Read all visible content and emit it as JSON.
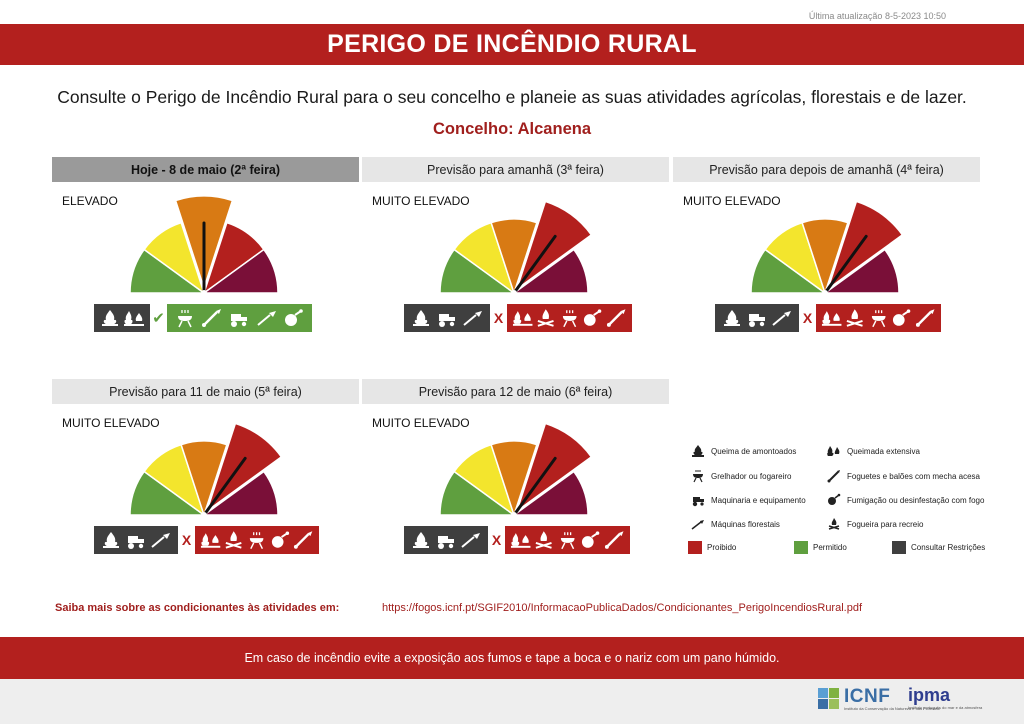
{
  "header": {
    "updated": "Última atualização 8-5-2023 10:50",
    "title": "PERIGO DE INCÊNDIO RURAL",
    "subtitle": "Consulte o Perigo de Incêndio Rural para o seu concelho e planeie as suas atividades agrícolas, florestais e de lazer.",
    "concelho": "Concelho: Alcanena"
  },
  "colors": {
    "brand_red": "#b3201e",
    "permitted_green": "#5f9f3f",
    "restricted_grey": "#3f3f3f",
    "gauge": [
      "#5f9f3f",
      "#f3e52d",
      "#d87a14",
      "#b3201e",
      "#7a0f38"
    ]
  },
  "panels": [
    {
      "heading": "Hoje - 8 de maio (2ª feira)",
      "level": "ELEVADO",
      "level_index": 3,
      "consult_icons": [
        "queima-amontoados-icon",
        "queimada-extensiva-icon"
      ],
      "status": "permitido",
      "status_icons": [
        "grelhador-icon",
        "foguetes-icon",
        "maquinaria-icon",
        "maquinas-florestais-icon",
        "fumigacao-icon"
      ]
    },
    {
      "heading": "Previsão para amanhã (3ª feira)",
      "level": "MUITO ELEVADO",
      "level_index": 4,
      "consult_icons": [
        "queima-amontoados-icon",
        "maquinaria-icon",
        "maquinas-florestais-icon"
      ],
      "status": "proibido",
      "status_icons": [
        "queimada-extensiva-icon",
        "fogueira-recreio-icon",
        "grelhador-icon",
        "fumigacao-icon",
        "foguetes-icon"
      ]
    },
    {
      "heading": "Previsão para depois de amanhã (4ª feira)",
      "level": "MUITO ELEVADO",
      "level_index": 4,
      "consult_icons": [
        "queima-amontoados-icon",
        "maquinaria-icon",
        "maquinas-florestais-icon"
      ],
      "status": "proibido",
      "status_icons": [
        "queimada-extensiva-icon",
        "fogueira-recreio-icon",
        "grelhador-icon",
        "fumigacao-icon",
        "foguetes-icon"
      ]
    },
    {
      "heading": "Previsão para 11 de maio (5ª feira)",
      "level": "MUITO ELEVADO",
      "level_index": 4,
      "consult_icons": [
        "queima-amontoados-icon",
        "maquinaria-icon",
        "maquinas-florestais-icon"
      ],
      "status": "proibido",
      "status_icons": [
        "queimada-extensiva-icon",
        "fogueira-recreio-icon",
        "grelhador-icon",
        "fumigacao-icon",
        "foguetes-icon"
      ]
    },
    {
      "heading": "Previsão para 12 de maio (6ª feira)",
      "level": "MUITO ELEVADO",
      "level_index": 4,
      "consult_icons": [
        "queima-amontoados-icon",
        "maquinaria-icon",
        "maquinas-florestais-icon"
      ],
      "status": "proibido",
      "status_icons": [
        "queimada-extensiva-icon",
        "fogueira-recreio-icon",
        "grelhador-icon",
        "fumigacao-icon",
        "foguetes-icon"
      ]
    }
  ],
  "legend": {
    "queima_amontoados": "Queima de amontoados",
    "queimada_extensiva": "Queimada extensiva",
    "grelhador": "Grelhador ou fogareiro",
    "foguetes": "Foguetes e balões com mecha acesa",
    "maquinaria": "Maquinaria e equipamento",
    "fumigacao": "Fumigação ou desinfestação com fogo",
    "maquinas_florestais": "Máquinas florestais",
    "fogueira": "Fogueira para recreio",
    "proibido": "Proibido",
    "permitido": "Permitido",
    "consultar": "Consultar Restrições"
  },
  "footer": {
    "more_label": "Saiba mais sobre as condicionantes às atividades em:",
    "more_link": "https://fogos.icnf.pt/SGIF2010/InformacaoPublicaDados/Condicionantes_PerigoIncendiosRural.pdf",
    "warning": "Em caso de incêndio evite a exposição aos fumos e tape a boca e o nariz com um pano húmido.",
    "icnf_logo": "ICNF",
    "icnf_tagline": "Instituto da Conservação da Natureza e das Florestas",
    "ipma_logo": "ipma",
    "ipma_tagline": "Instituto português do mar e da atmosfera"
  }
}
